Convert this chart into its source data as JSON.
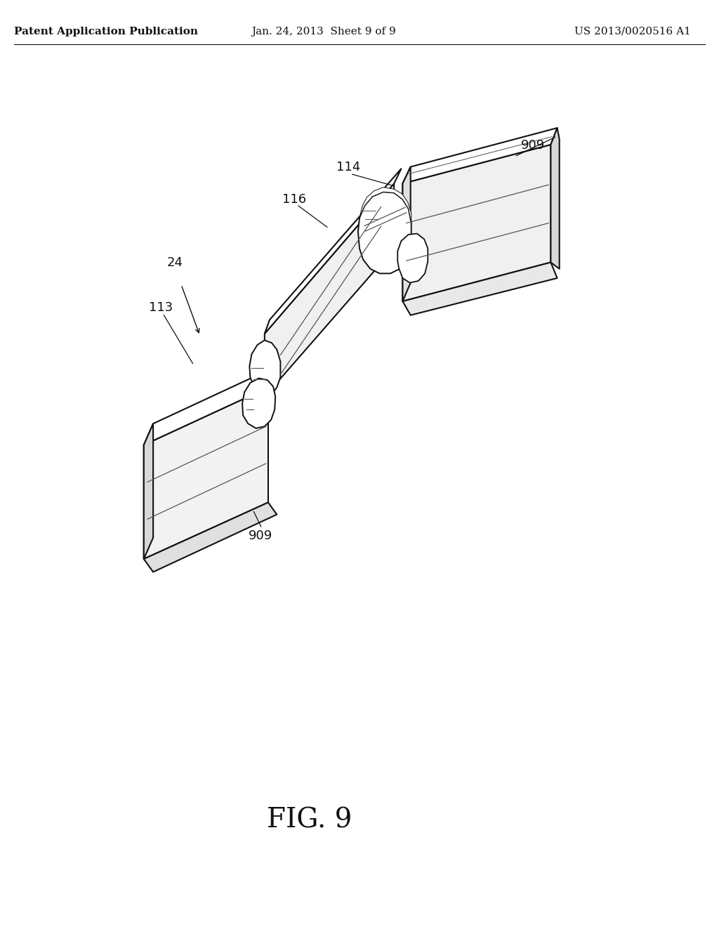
{
  "bg_color": "#ffffff",
  "title_text": "FIG. 9",
  "title_fontsize": 28,
  "header_left": "Patent Application Publication",
  "header_center": "Jan. 24, 2013  Sheet 9 of 9",
  "header_right": "US 2013/0020516 A1",
  "header_fontsize": 11,
  "line_color": "#111111",
  "line_width": 1.5,
  "label_fontsize": 13
}
